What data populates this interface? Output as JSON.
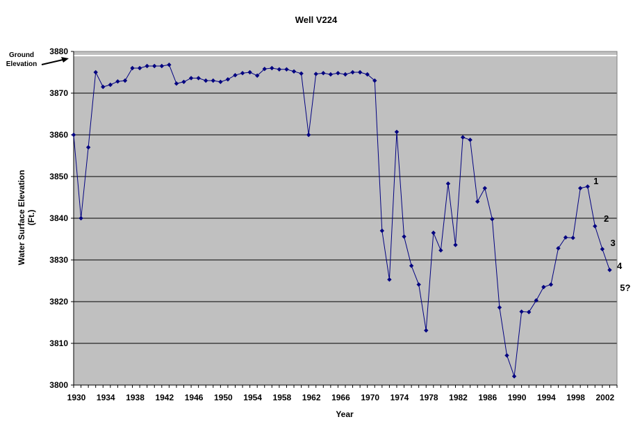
{
  "chart_data": {
    "type": "line",
    "title": "Well V224",
    "xlabel": "Year",
    "ylabel_line1": "Water Surface Elevation",
    "ylabel_line2": "(Ft.)",
    "xlim": [
      1930,
      2004
    ],
    "ylim": [
      3800,
      3880
    ],
    "ytick_values": [
      3800,
      3810,
      3820,
      3830,
      3840,
      3850,
      3860,
      3870,
      3880
    ],
    "ytick_labels": [
      "3800",
      "3810",
      "3820",
      "3830",
      "3840",
      "3850",
      "3860",
      "3870",
      "3880"
    ],
    "xtick_values": [
      1930,
      1934,
      1938,
      1942,
      1946,
      1950,
      1954,
      1958,
      1962,
      1966,
      1970,
      1974,
      1978,
      1982,
      1986,
      1990,
      1994,
      1998,
      2002
    ],
    "xtick_labels": [
      "1930",
      "1934",
      "1938",
      "1942",
      "1946",
      "1950",
      "1954",
      "1958",
      "1962",
      "1966",
      "1970",
      "1974",
      "1978",
      "1982",
      "1986",
      "1990",
      "1994",
      "1998",
      "2002"
    ],
    "grid": "horizontal",
    "plot_background": "#C0C0C0",
    "line_color": "#000080",
    "ground_elevation": 3879,
    "ground_elevation_label_line1": "Ground",
    "ground_elevation_label_line2": "Elevation",
    "ground_line_color": "#FFFFFF",
    "series": [
      {
        "x": [
          1930,
          1931,
          1932,
          1933,
          1934,
          1935,
          1936,
          1937,
          1938,
          1939,
          1940,
          1941,
          1942,
          1943,
          1944,
          1945,
          1946,
          1947,
          1948,
          1949,
          1950,
          1951,
          1952,
          1953,
          1954,
          1955,
          1956,
          1957,
          1958,
          1959,
          1960,
          1961,
          1962,
          1963,
          1964,
          1965,
          1966,
          1967,
          1968,
          1969,
          1970,
          1971,
          1972,
          1973,
          1974,
          1975,
          1976,
          1977,
          1978,
          1979,
          1980,
          1981,
          1982,
          1983,
          1984,
          1985,
          1986,
          1987,
          1988,
          1989,
          1990,
          1991,
          1992,
          1993,
          1994,
          1995,
          1996,
          1997,
          1998,
          1999,
          2000,
          2001,
          2002,
          2003
        ],
        "values": [
          3860,
          3840,
          3857,
          3875,
          3871.5,
          3872,
          3872.8,
          3873,
          3876,
          3876,
          3876.5,
          3876.5,
          3876.5,
          3876.8,
          3872.3,
          3872.7,
          3873.6,
          3873.6,
          3873,
          3873,
          3872.7,
          3873.3,
          3874.3,
          3874.8,
          3875,
          3874.2,
          3875.8,
          3876,
          3875.7,
          3875.7,
          3875.2,
          3874.7,
          3860,
          3874.6,
          3874.8,
          3874.5,
          3874.8,
          3874.5,
          3875,
          3875,
          3874.5,
          3873,
          3837,
          3825.3,
          3860.7,
          3835.6,
          3828.6,
          3824.1,
          3813.1,
          3836.5,
          3832.3,
          3848.3,
          3833.6,
          3859.4,
          3858.8,
          3844,
          3847.2,
          3839.8,
          3818.6,
          3807.1,
          3802.1,
          3817.6,
          3817.5,
          3820.3,
          3823.5,
          3824.1,
          3832.8,
          3835.4,
          3835.3,
          3847.2,
          3847.6,
          3838.1,
          3832.6,
          3827.6
        ]
      }
    ],
    "annotations": [
      {
        "text": "1",
        "x": 2000.8,
        "y": 3848.2
      },
      {
        "text": "2",
        "x": 2002.2,
        "y": 3839.2
      },
      {
        "text": "3",
        "x": 2003.1,
        "y": 3833.3
      },
      {
        "text": "4",
        "x": 2004.0,
        "y": 3827.8
      },
      {
        "text": "5?",
        "x": 2004.4,
        "y": 3822.6
      }
    ]
  }
}
